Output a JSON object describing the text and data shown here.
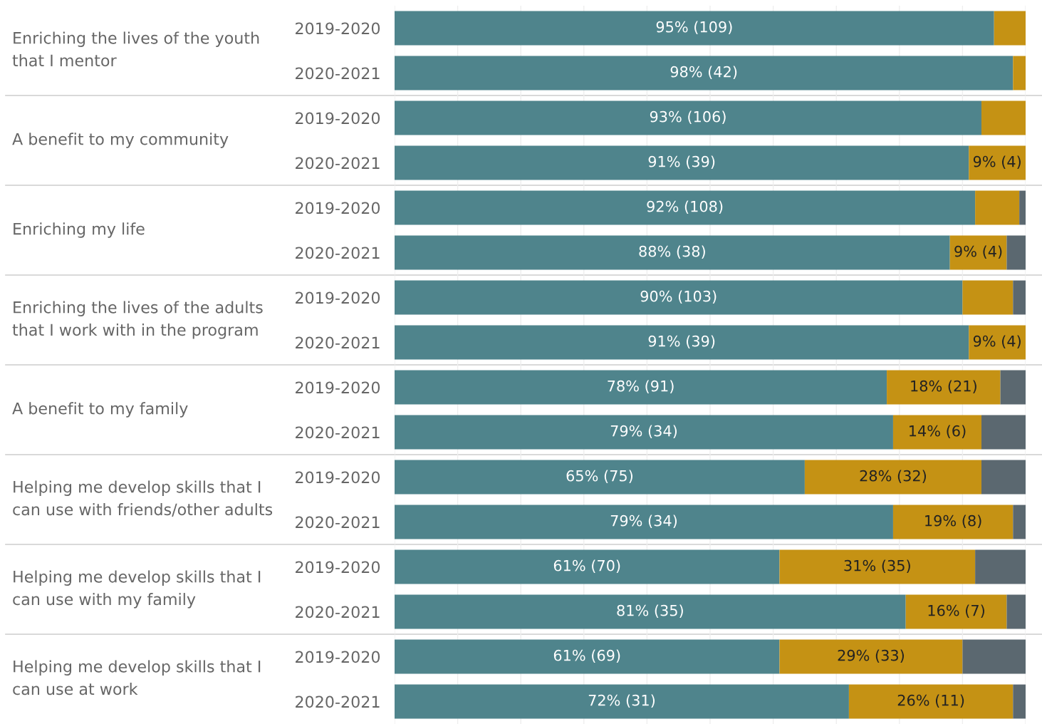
{
  "chart_data": {
    "type": "bar",
    "orientation": "horizontal",
    "stacked": true,
    "grid": "x",
    "tick_labels": "y",
    "categories": [
      "2019-2020",
      "2020-2021",
      "2019-2020",
      "2020-2021",
      "2019-2020",
      "2020-2021",
      "2019-2020",
      "2020-2021",
      "2019-2020",
      "2020-2021",
      "2019-2020",
      "2020-2021",
      "2019-2020",
      "2020-2021",
      "2019-2020",
      "2020-2021"
    ],
    "annotations": [
      "Enriching the lives of the youth\nthat I mentor",
      "A benefit to my community",
      "Enriching my life",
      "Enriching the lives of the adults\nthat I work with in the program",
      "A benefit to my family",
      "Helping me develop skills that I\ncan use with friends/other adults",
      "Helping me develop skills that I\ncan use with my family",
      "Helping me develop skills that I\ncan use at work"
    ],
    "xlim": [
      0,
      100
    ],
    "xticks": [
      {
        "value": 0,
        "label": null
      },
      {
        "value": 10,
        "label": null
      },
      {
        "value": 20,
        "label": null
      },
      {
        "value": 30,
        "label": null
      },
      {
        "value": 40,
        "label": null
      },
      {
        "value": 50,
        "label": null
      },
      {
        "value": 60,
        "label": null
      },
      {
        "value": 70,
        "label": null
      },
      {
        "value": 80,
        "label": null
      },
      {
        "value": 90,
        "label": null
      },
      {
        "value": 100,
        "label": null
      }
    ],
    "series": [
      {
        "color": "#4f848c",
        "values": [
          95,
          98,
          93,
          91,
          92,
          88,
          90,
          91,
          78,
          79,
          65,
          79,
          61,
          81,
          61,
          72
        ],
        "value_labels": [
          "95% (109)",
          "98% (42)",
          "93% (106)",
          "91% (39)",
          "92% (108)",
          "88% (38)",
          "90% (103)",
          "91% (39)",
          "78% (91)",
          "79% (34)",
          "65% (75)",
          "79% (34)",
          "61% (70)",
          "81% (35)",
          "61% (69)",
          "72% (31)"
        ]
      },
      {
        "color": "#c59214",
        "values": [
          5,
          2,
          7,
          9,
          7,
          9,
          8,
          9,
          18,
          14,
          28,
          19,
          31,
          16,
          29,
          26
        ],
        "value_labels": [
          null,
          null,
          null,
          "9% (4)",
          null,
          "9% (4)",
          null,
          "9% (4)",
          "18% (21)",
          "14% (6)",
          "28% (32)",
          "19% (8)",
          "31% (35)",
          "16% (7)",
          "29% (33)",
          "26% (11)"
        ]
      },
      {
        "color": "#5b6870",
        "values": [
          0,
          0,
          0,
          0,
          1,
          3,
          2,
          0,
          4,
          7,
          7,
          2,
          8,
          3,
          10,
          2
        ]
      }
    ]
  }
}
